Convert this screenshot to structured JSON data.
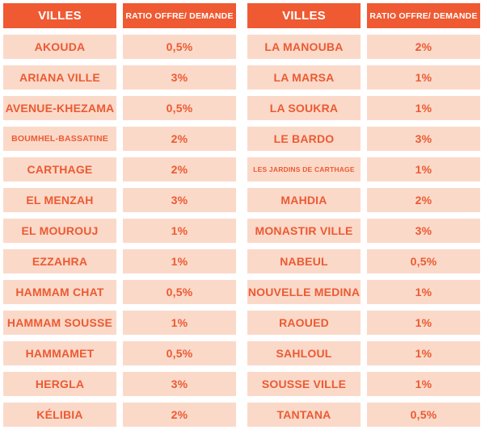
{
  "header": {
    "col_city": "VILLES",
    "col_ratio": "RATIO OFFRE/ DEMANDE"
  },
  "left": [
    {
      "city": "AKOUDA",
      "ratio": "0,5%"
    },
    {
      "city": "ARIANA VILLE",
      "ratio": "3%"
    },
    {
      "city": "AVENUE-KHEZAMA",
      "ratio": "0,5%"
    },
    {
      "city": "BOUMHEL-BASSATINE",
      "ratio": "2%"
    },
    {
      "city": "CARTHAGE",
      "ratio": "2%"
    },
    {
      "city": "EL MENZAH",
      "ratio": "3%"
    },
    {
      "city": "EL MOUROUJ",
      "ratio": "1%"
    },
    {
      "city": "EZZAHRA",
      "ratio": "1%"
    },
    {
      "city": "HAMMAM CHAT",
      "ratio": "0,5%"
    },
    {
      "city": "HAMMAM SOUSSE",
      "ratio": "1%"
    },
    {
      "city": "HAMMAMET",
      "ratio": "0,5%"
    },
    {
      "city": "HERGLA",
      "ratio": "3%"
    },
    {
      "city": "KÉLIBIA",
      "ratio": "2%"
    }
  ],
  "right": [
    {
      "city": "LA MANOUBA",
      "ratio": "2%"
    },
    {
      "city": "LA MARSA",
      "ratio": "1%"
    },
    {
      "city": "LA SOUKRA",
      "ratio": "1%"
    },
    {
      "city": "LE BARDO",
      "ratio": "3%"
    },
    {
      "city": "LES JARDINS DE CARTHAGE",
      "ratio": "1%"
    },
    {
      "city": "MAHDIA",
      "ratio": "2%"
    },
    {
      "city": "MONASTIR VILLE",
      "ratio": "3%"
    },
    {
      "city": "NABEUL",
      "ratio": "0,5%"
    },
    {
      "city": "NOUVELLE MEDINA",
      "ratio": "1%"
    },
    {
      "city": "RAOUED",
      "ratio": "1%"
    },
    {
      "city": "SAHLOUL",
      "ratio": "1%"
    },
    {
      "city": "SOUSSE VILLE",
      "ratio": "1%"
    },
    {
      "city": "TANTANA",
      "ratio": "0,5%"
    }
  ]
}
